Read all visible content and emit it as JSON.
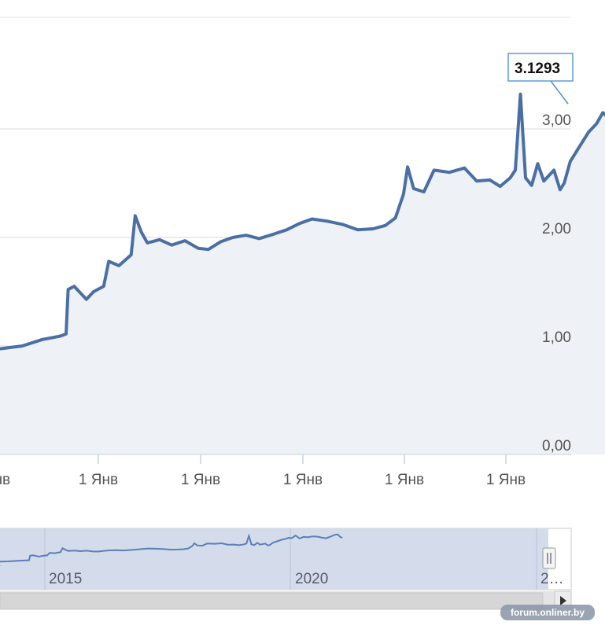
{
  "chart_data": {
    "type": "area",
    "title": "",
    "xlabel": "",
    "ylabel": "",
    "ylim": [
      0,
      4
    ],
    "y_tick_labels": [
      "0,00",
      "1,00",
      "2,00",
      "3,00"
    ],
    "x_tick_labels": [
      "Янв",
      "1 Янв",
      "1 Янв",
      "1 Янв",
      "1 Янв",
      "1 Янв"
    ],
    "grid": true,
    "series": [
      {
        "values": [
          [
            2014.0,
            0.97
          ],
          [
            2014.25,
            1.0
          ],
          [
            2014.45,
            1.06
          ],
          [
            2014.62,
            1.09
          ],
          [
            2014.68,
            1.11
          ],
          [
            2014.7,
            1.52
          ],
          [
            2014.76,
            1.55
          ],
          [
            2014.88,
            1.43
          ],
          [
            2014.95,
            1.5
          ],
          [
            2015.05,
            1.55
          ],
          [
            2015.1,
            1.78
          ],
          [
            2015.2,
            1.74
          ],
          [
            2015.32,
            1.84
          ],
          [
            2015.36,
            2.2
          ],
          [
            2015.42,
            2.05
          ],
          [
            2015.48,
            1.95
          ],
          [
            2015.6,
            1.98
          ],
          [
            2015.72,
            1.93
          ],
          [
            2015.85,
            1.97
          ],
          [
            2015.98,
            1.9
          ],
          [
            2016.08,
            1.89
          ],
          [
            2016.2,
            1.96
          ],
          [
            2016.32,
            2.0
          ],
          [
            2016.45,
            2.02
          ],
          [
            2016.58,
            1.99
          ],
          [
            2016.72,
            2.03
          ],
          [
            2016.85,
            2.07
          ],
          [
            2016.98,
            2.13
          ],
          [
            2017.1,
            2.17
          ],
          [
            2017.25,
            2.15
          ],
          [
            2017.4,
            2.12
          ],
          [
            2017.55,
            2.07
          ],
          [
            2017.7,
            2.08
          ],
          [
            2017.82,
            2.11
          ],
          [
            2017.92,
            2.18
          ],
          [
            2018.0,
            2.4
          ],
          [
            2018.04,
            2.65
          ],
          [
            2018.1,
            2.45
          ],
          [
            2018.2,
            2.42
          ],
          [
            2018.3,
            2.62
          ],
          [
            2018.45,
            2.6
          ],
          [
            2018.6,
            2.64
          ],
          [
            2018.72,
            2.52
          ],
          [
            2018.85,
            2.53
          ],
          [
            2018.95,
            2.47
          ],
          [
            2019.05,
            2.55
          ],
          [
            2019.1,
            2.62
          ],
          [
            2019.15,
            3.32
          ],
          [
            2019.2,
            2.55
          ],
          [
            2019.26,
            2.48
          ],
          [
            2019.32,
            2.68
          ],
          [
            2019.38,
            2.52
          ],
          [
            2019.48,
            2.62
          ],
          [
            2019.54,
            2.44
          ],
          [
            2019.58,
            2.5
          ],
          [
            2019.64,
            2.7
          ],
          [
            2019.72,
            2.82
          ],
          [
            2019.82,
            2.97
          ],
          [
            2019.9,
            3.05
          ],
          [
            2019.96,
            3.15
          ],
          [
            2020.02,
            3.1
          ],
          [
            2020.1,
            3.35
          ],
          [
            2020.18,
            3.08
          ],
          [
            2020.26,
            3.22
          ],
          [
            2020.35,
            3.2
          ],
          [
            2020.45,
            3.27
          ],
          [
            2020.55,
            3.24
          ],
          [
            2020.65,
            3.14
          ],
          [
            2020.72,
            3.1
          ],
          [
            2020.78,
            3.2
          ],
          [
            2020.85,
            3.32
          ],
          [
            2020.9,
            3.42
          ],
          [
            2020.96,
            3.44
          ],
          [
            2021.0,
            3.25
          ],
          [
            2021.05,
            3.12
          ]
        ]
      }
    ],
    "tooltip": "3.1293",
    "navigator_labels": [
      "2015",
      "2020",
      "2…"
    ],
    "watermark": "forum.onliner.by",
    "colors": {
      "line": "#4a6fa5",
      "area": "#eef1f5",
      "grid": "#d8d8d8",
      "navigator_bg": "#d4dcec",
      "navigator_line": "#5b7fb7",
      "scrollbar": "#dcdcdc"
    }
  }
}
